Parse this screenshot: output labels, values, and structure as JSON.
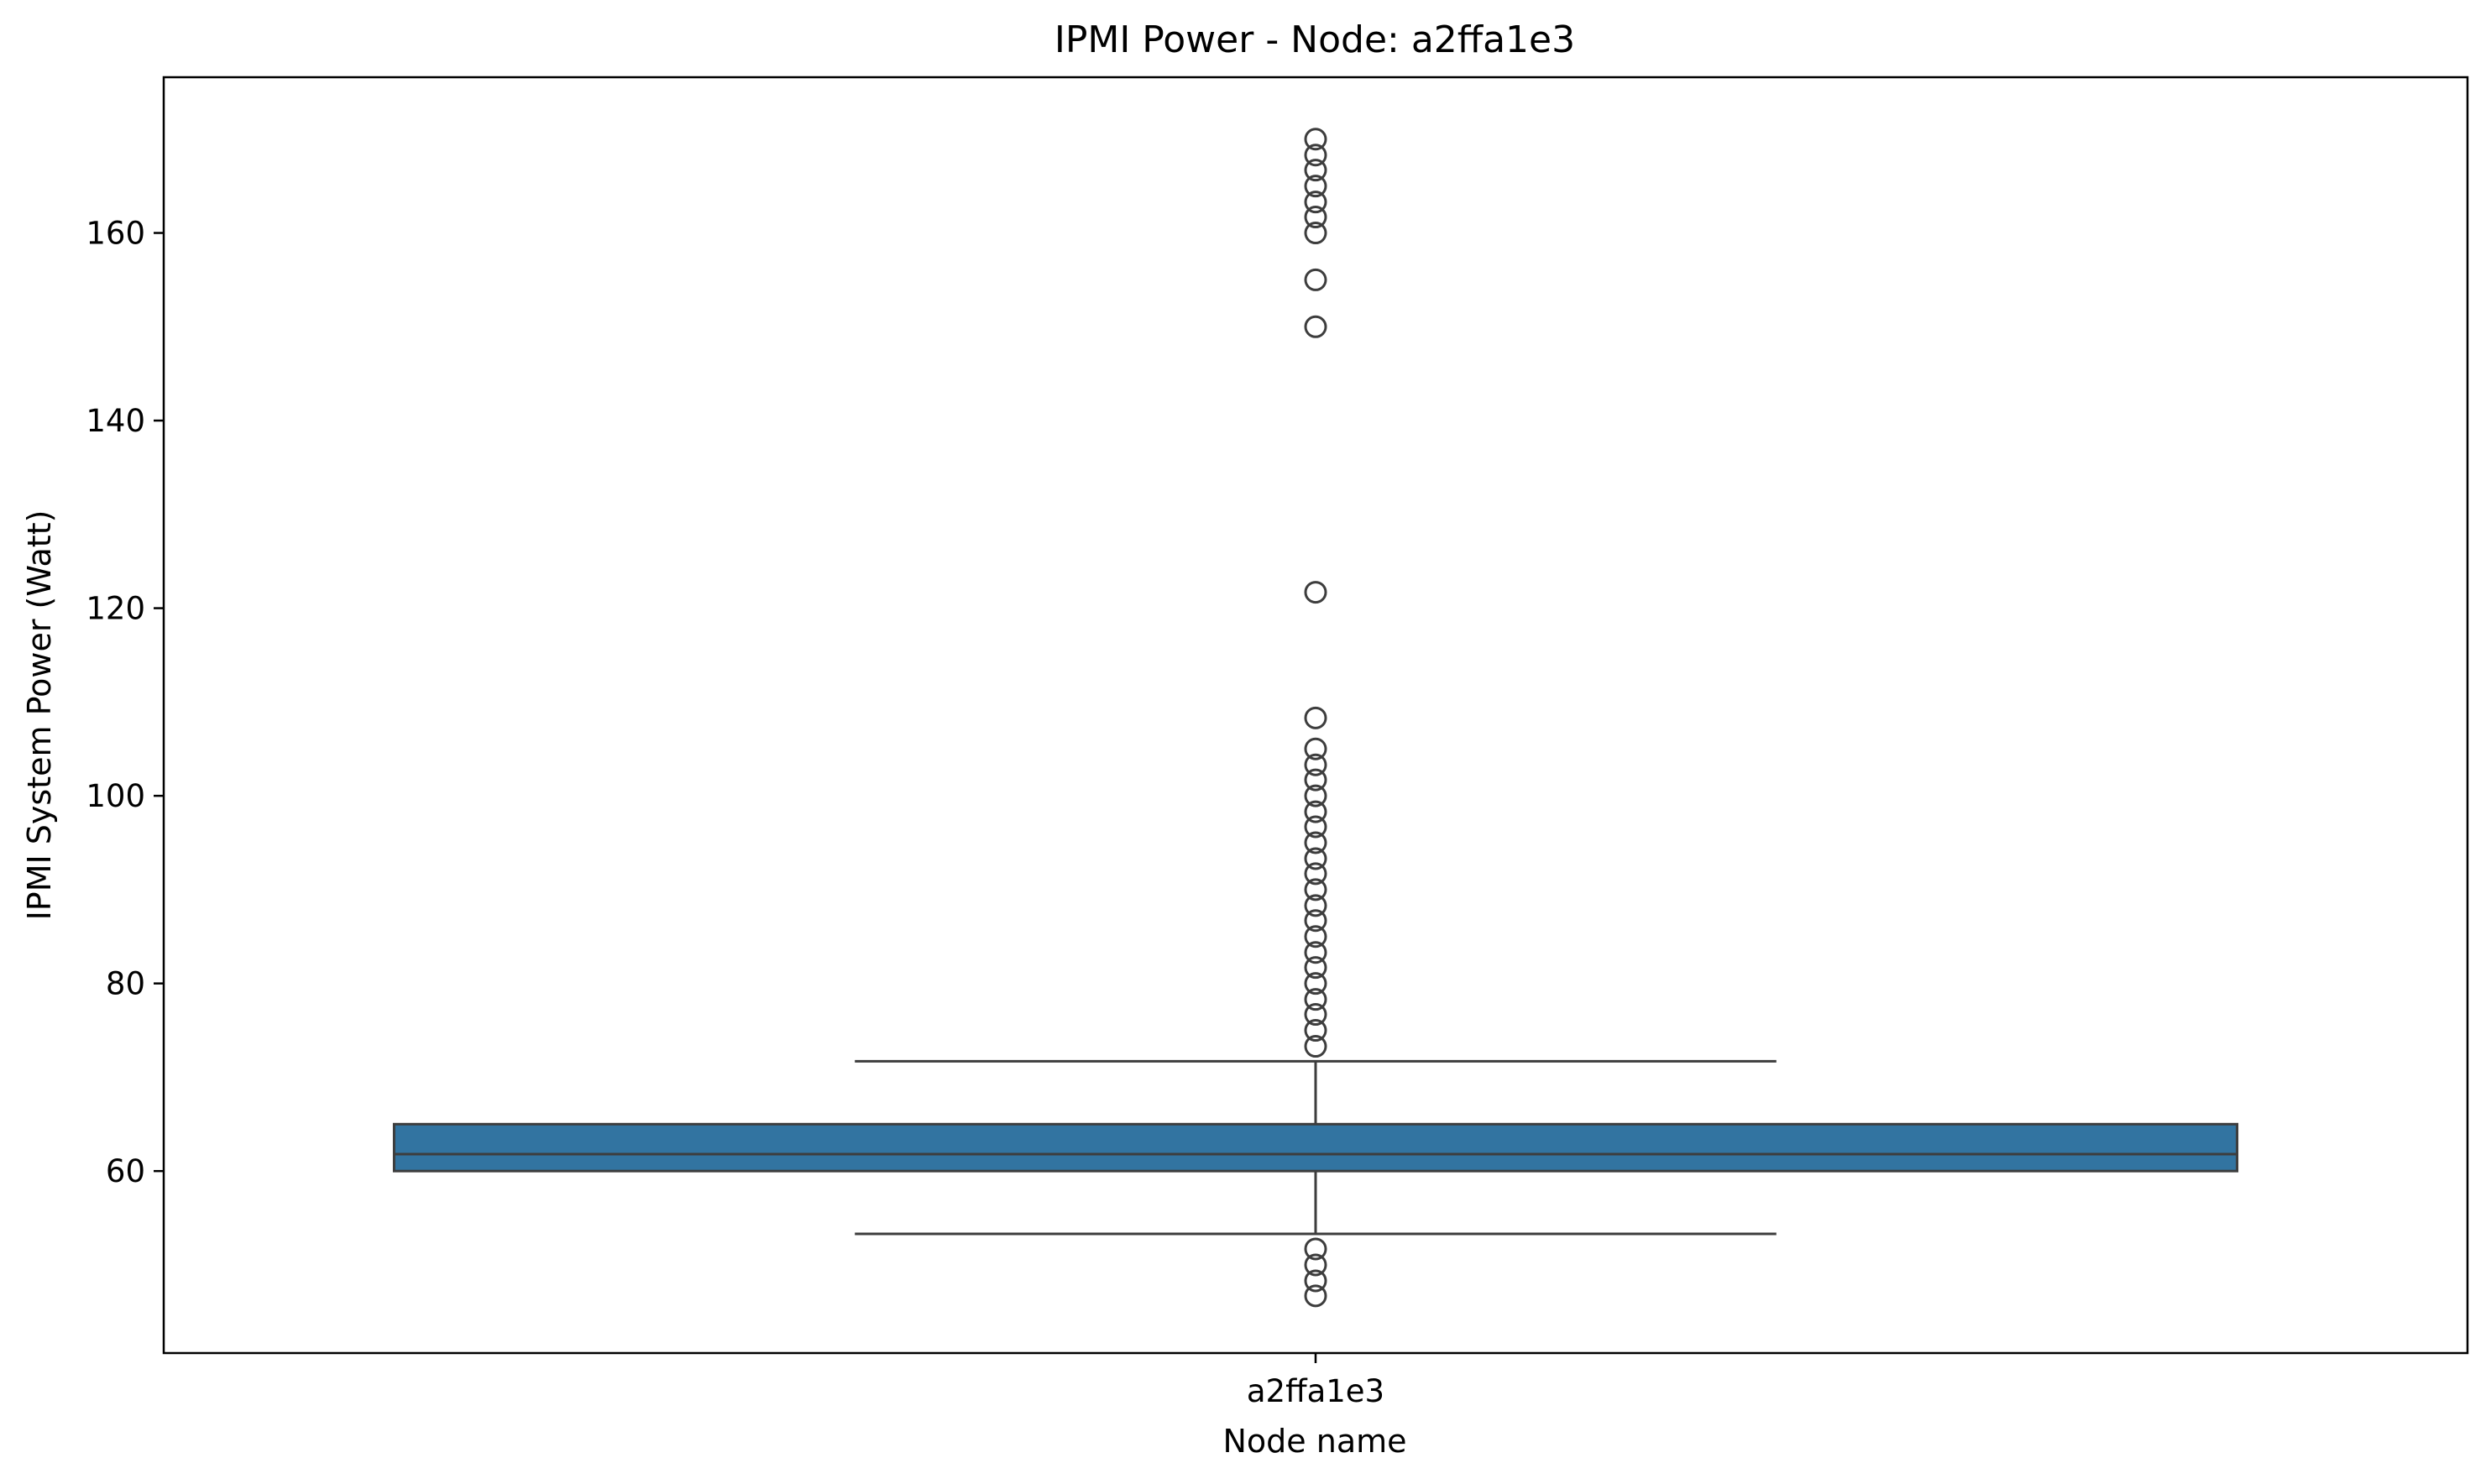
{
  "chart_data": {
    "type": "box",
    "title": "IPMI Power - Node: a2ffa1e3",
    "xlabel": "Node name",
    "ylabel": "IPMI System Power (Watt)",
    "categories": [
      "a2ffa1e3"
    ],
    "ylim": [
      40.6,
      176.6
    ],
    "yticks": [
      60,
      80,
      100,
      120,
      140,
      160
    ],
    "grid": false,
    "colors": {
      "box_fill": "#3274a1",
      "lines": "#3d3d3d"
    },
    "boxes": [
      {
        "category": "a2ffa1e3",
        "q1": 60.0,
        "median": 61.8,
        "q3": 65.0,
        "whisker_low": 53.3,
        "whisker_high": 71.7,
        "outliers": [
          46.7,
          48.3,
          50.0,
          51.7,
          73.3,
          75.0,
          76.7,
          78.3,
          80.0,
          81.7,
          83.3,
          85.0,
          86.7,
          88.3,
          90.0,
          91.7,
          93.3,
          95.0,
          96.7,
          98.3,
          100.0,
          101.7,
          103.3,
          105.0,
          108.3,
          121.7,
          150.0,
          155.0,
          160.0,
          161.7,
          163.3,
          165.0,
          166.7,
          168.3,
          170.0
        ]
      }
    ]
  }
}
